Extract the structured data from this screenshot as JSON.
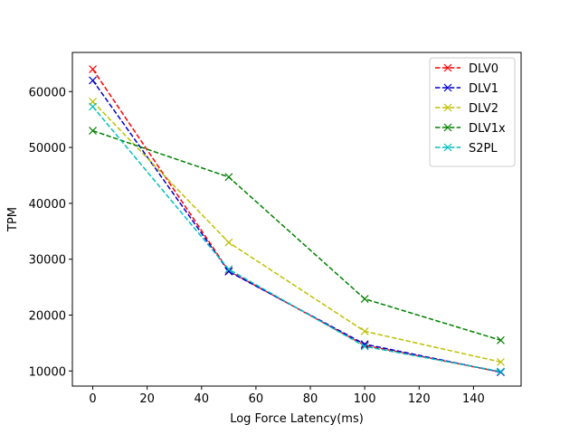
{
  "chart_data": {
    "type": "line",
    "title": "",
    "xlabel": "Log Force Latency(ms)",
    "ylabel": "TPM",
    "xlim": [
      -7.5,
      157.5
    ],
    "ylim": [
      7300,
      67000
    ],
    "xticks": [
      0,
      20,
      40,
      60,
      80,
      100,
      120,
      140
    ],
    "yticks": [
      10000,
      20000,
      30000,
      40000,
      50000,
      60000
    ],
    "grid": false,
    "legend_position": "top-right",
    "marker": "x",
    "line_style": "dashed",
    "series": [
      {
        "name": "DLV0",
        "color": "#ff0000",
        "x": [
          0,
          50,
          100,
          150
        ],
        "y": [
          64000,
          27900,
          14600,
          9800
        ]
      },
      {
        "name": "DLV1",
        "color": "#0000cc",
        "x": [
          0,
          50,
          100,
          150
        ],
        "y": [
          62000,
          27800,
          14800,
          9800
        ]
      },
      {
        "name": "DLV2",
        "color": "#bfbf00",
        "x": [
          0,
          50,
          100,
          150
        ],
        "y": [
          58200,
          33000,
          17100,
          11600
        ]
      },
      {
        "name": "DLV1x",
        "color": "#008000",
        "x": [
          0,
          50,
          100,
          150
        ],
        "y": [
          53000,
          44700,
          22900,
          15500
        ]
      },
      {
        "name": "S2PL",
        "color": "#00bfbf",
        "x": [
          0,
          50,
          100,
          150
        ],
        "y": [
          57300,
          28200,
          14400,
          9900
        ]
      }
    ]
  }
}
